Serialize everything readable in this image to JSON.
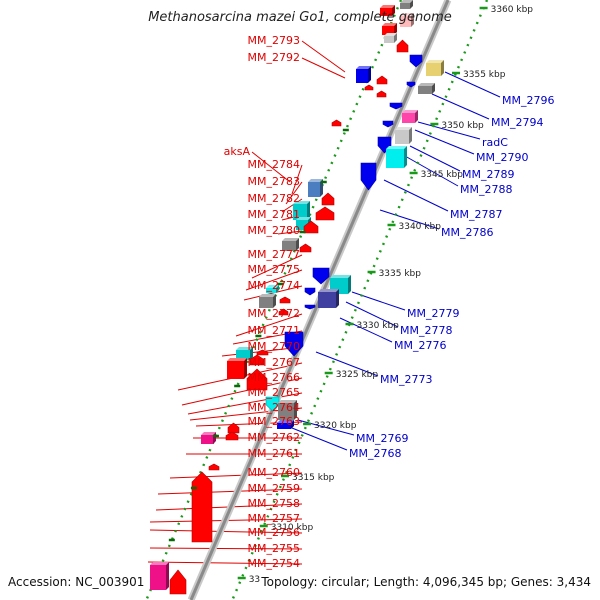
{
  "title": "Methanosarcina mazei Go1, complete genome",
  "accession": "Accession: NC_003901",
  "summary": "Topology: circular; Length: 4,096,345 bp; Genes: 3,434",
  "colors": {
    "left_label": "#e00000",
    "right_label": "#0000cc",
    "backbone": "#8a8a8a",
    "tick": "#1a9a1a",
    "scale_text": "#222222"
  },
  "scale_ticks": [
    {
      "label": "3360 kbp"
    },
    {
      "label": "3355 kbp"
    },
    {
      "label": "3350 kbp"
    },
    {
      "label": "3345 kbp"
    },
    {
      "label": "3340 kbp"
    },
    {
      "label": "3335 kbp"
    },
    {
      "label": "3330 kbp"
    },
    {
      "label": "3325 kbp"
    },
    {
      "label": "3320 kbp"
    },
    {
      "label": "3315 kbp"
    },
    {
      "label": "3310 kbp"
    },
    {
      "label": "33"
    }
  ],
  "left_labels": [
    "MM_2793",
    "MM_2792",
    "aksA",
    "MM_2784",
    "MM_2783",
    "MM_2782",
    "MM_2781",
    "MM_2780",
    "MM_2777",
    "MM_2775",
    "MM_2774",
    "MM_2772",
    "MM_2771",
    "MM_2770",
    "MM_2767",
    "MM_2766",
    "MM_2765",
    "MM_2764",
    "MM_2763",
    "MM_2762",
    "MM_2761",
    "MM_2760",
    "MM_2759",
    "MM_2758",
    "MM_2757",
    "MM_2756",
    "MM_2755",
    "MM_2754"
  ],
  "right_labels": [
    "MM_2796",
    "MM_2794",
    "radC",
    "MM_2790",
    "MM_2789",
    "MM_2788",
    "MM_2787",
    "MM_2786",
    "MM_2779",
    "MM_2778",
    "MM_2776",
    "MM_2773",
    "MM_2769",
    "MM_2768"
  ],
  "genes": [
    {
      "id": "g1",
      "strand": "forward",
      "color": "#ff0000"
    },
    {
      "id": "g2",
      "strand": "forward",
      "color": "#ff0000"
    },
    {
      "id": "g3",
      "strand": "forward",
      "color": "#ff0000"
    },
    {
      "id": "g4",
      "strand": "forward",
      "color": "#ffbbbb"
    },
    {
      "id": "g5",
      "strand": "forward",
      "color": "#c8c8c8"
    },
    {
      "id": "g6",
      "strand": "forward",
      "color": "#808080"
    },
    {
      "id": "g7",
      "strand": "forward",
      "color": "#0000ee"
    },
    {
      "id": "g8",
      "strand": "forward",
      "color": "#ff0000"
    },
    {
      "id": "g9",
      "strand": "forward",
      "color": "#ff0000"
    },
    {
      "id": "g10",
      "strand": "forward",
      "color": "#ff0000"
    },
    {
      "id": "g11",
      "strand": "forward",
      "color": "#ff0000"
    },
    {
      "id": "g12",
      "strand": "forward",
      "color": "#4a7ec0"
    },
    {
      "id": "g13",
      "strand": "forward",
      "color": "#00cccc"
    },
    {
      "id": "g14",
      "strand": "forward",
      "color": "#00cccc"
    },
    {
      "id": "g15",
      "strand": "forward",
      "color": "#ff0000"
    },
    {
      "id": "g16",
      "strand": "forward",
      "color": "#ff0000"
    },
    {
      "id": "g17",
      "strand": "forward",
      "color": "#ff0000"
    },
    {
      "id": "g18",
      "strand": "forward",
      "color": "#808080"
    },
    {
      "id": "g19",
      "strand": "forward",
      "color": "#ff0000"
    },
    {
      "id": "g20",
      "strand": "forward",
      "color": "#00eeee"
    },
    {
      "id": "g21",
      "strand": "forward",
      "color": "#808080"
    },
    {
      "id": "g22",
      "strand": "forward",
      "color": "#ff0000"
    },
    {
      "id": "g23",
      "strand": "forward",
      "color": "#ff0000"
    },
    {
      "id": "g24",
      "strand": "forward",
      "color": "#00cccc"
    },
    {
      "id": "g25",
      "strand": "forward",
      "color": "#ff0000"
    },
    {
      "id": "g26",
      "strand": "forward",
      "color": "#ff0000"
    },
    {
      "id": "g27",
      "strand": "forward",
      "color": "#ff0000"
    },
    {
      "id": "g28",
      "strand": "forward",
      "color": "#ff0000"
    },
    {
      "id": "g29",
      "strand": "forward",
      "color": "#ee1188"
    },
    {
      "id": "g30",
      "strand": "forward",
      "color": "#ff0000"
    },
    {
      "id": "g31",
      "strand": "forward",
      "color": "#ff0000"
    },
    {
      "id": "g32",
      "strand": "forward",
      "color": "#ff0000"
    },
    {
      "id": "g33",
      "strand": "forward",
      "color": "#ff0000"
    },
    {
      "id": "g34",
      "strand": "forward",
      "color": "#ee1188"
    },
    {
      "id": "g35",
      "strand": "forward",
      "color": "#ff0000"
    },
    {
      "id": "g36",
      "strand": "reverse",
      "color": "#e6d070"
    },
    {
      "id": "g37",
      "strand": "reverse",
      "color": "#0000ee"
    },
    {
      "id": "g38",
      "strand": "reverse",
      "color": "#808080"
    },
    {
      "id": "g39",
      "strand": "reverse",
      "color": "#0000ee"
    },
    {
      "id": "g40",
      "strand": "reverse",
      "color": "#ff44aa"
    },
    {
      "id": "g41",
      "strand": "reverse",
      "color": "#c8c8c8"
    },
    {
      "id": "g42",
      "strand": "reverse",
      "color": "#0000ee"
    },
    {
      "id": "g43",
      "strand": "reverse",
      "color": "#00eeee"
    },
    {
      "id": "g44",
      "strand": "reverse",
      "color": "#0000ee"
    },
    {
      "id": "g45",
      "strand": "reverse",
      "color": "#0000ee"
    },
    {
      "id": "g46",
      "strand": "reverse",
      "color": "#0000ee"
    },
    {
      "id": "g47",
      "strand": "reverse",
      "color": "#00cccc"
    },
    {
      "id": "g48",
      "strand": "reverse",
      "color": "#0000ee"
    },
    {
      "id": "g49",
      "strand": "reverse",
      "color": "#4040a0"
    },
    {
      "id": "g50",
      "strand": "reverse",
      "color": "#0000ee"
    },
    {
      "id": "g51",
      "strand": "reverse",
      "color": "#0000ee"
    },
    {
      "id": "g52",
      "strand": "reverse",
      "color": "#0000ee"
    },
    {
      "id": "g53",
      "strand": "reverse",
      "color": "#00eeee"
    },
    {
      "id": "g54",
      "strand": "reverse",
      "color": "#808080"
    },
    {
      "id": "g55",
      "strand": "reverse",
      "color": "#0000ee"
    }
  ]
}
